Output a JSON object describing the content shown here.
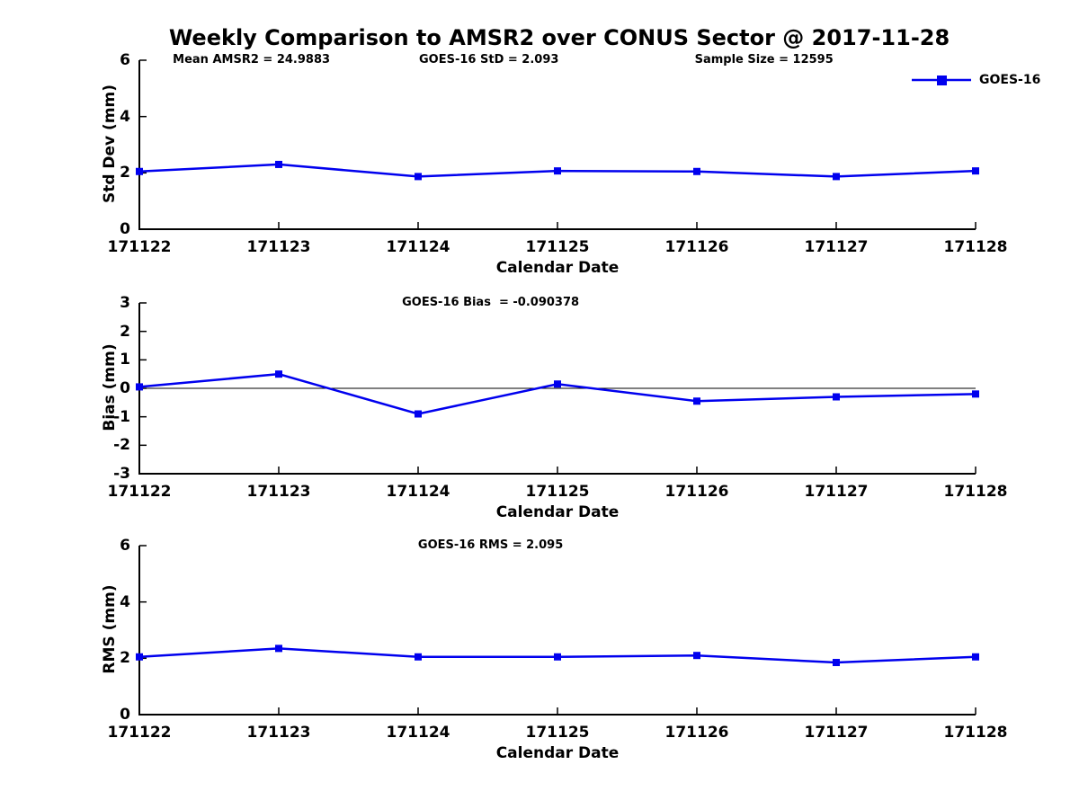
{
  "figure": {
    "title": "Weekly Comparison to AMSR2 over CONUS Sector @ 2017-11-28"
  },
  "colors": {
    "line": "#0000EE",
    "text": "#000000"
  },
  "legend": {
    "label": "GOES-16"
  },
  "chart_data": [
    {
      "type": "line",
      "name": "std-dev",
      "annotations": [
        "Mean AMSR2 = 24.9883",
        "GOES-16 StD = 2.093",
        "Sample Size = 12595"
      ],
      "categories": [
        "171122",
        "171123",
        "171124",
        "171125",
        "171126",
        "171127",
        "171128"
      ],
      "series": [
        {
          "name": "GOES-16",
          "values": [
            2.05,
            2.3,
            1.87,
            2.07,
            2.05,
            1.87,
            2.07
          ]
        }
      ],
      "xlabel": "Calendar Date",
      "ylabel": "Std Dev (mm)",
      "ylim": [
        0,
        6
      ],
      "yticks": [
        0,
        2,
        4,
        6
      ],
      "grid": false,
      "zero_line": false,
      "legend_position": "top-right"
    },
    {
      "type": "line",
      "name": "bias",
      "annotations": [
        "GOES-16 Bias  = -0.090378"
      ],
      "categories": [
        "171122",
        "171123",
        "171124",
        "171125",
        "171126",
        "171127",
        "171128"
      ],
      "series": [
        {
          "name": "GOES-16",
          "values": [
            0.05,
            0.5,
            -0.9,
            0.15,
            -0.45,
            -0.3,
            -0.2
          ]
        }
      ],
      "xlabel": "Calendar Date",
      "ylabel": "Bias (mm)",
      "ylim": [
        -3,
        3
      ],
      "yticks": [
        -3,
        -2,
        -1,
        0,
        1,
        2,
        3
      ],
      "grid": false,
      "zero_line": true
    },
    {
      "type": "line",
      "name": "rms",
      "annotations": [
        "GOES-16 RMS = 2.095"
      ],
      "categories": [
        "171122",
        "171123",
        "171124",
        "171125",
        "171126",
        "171127",
        "171128"
      ],
      "series": [
        {
          "name": "GOES-16",
          "values": [
            2.05,
            2.35,
            2.05,
            2.05,
            2.1,
            1.85,
            2.05
          ]
        }
      ],
      "xlabel": "Calendar Date",
      "ylabel": "RMS (mm)",
      "ylim": [
        0,
        6
      ],
      "yticks": [
        0,
        2,
        4,
        6
      ],
      "grid": false,
      "zero_line": false
    }
  ]
}
